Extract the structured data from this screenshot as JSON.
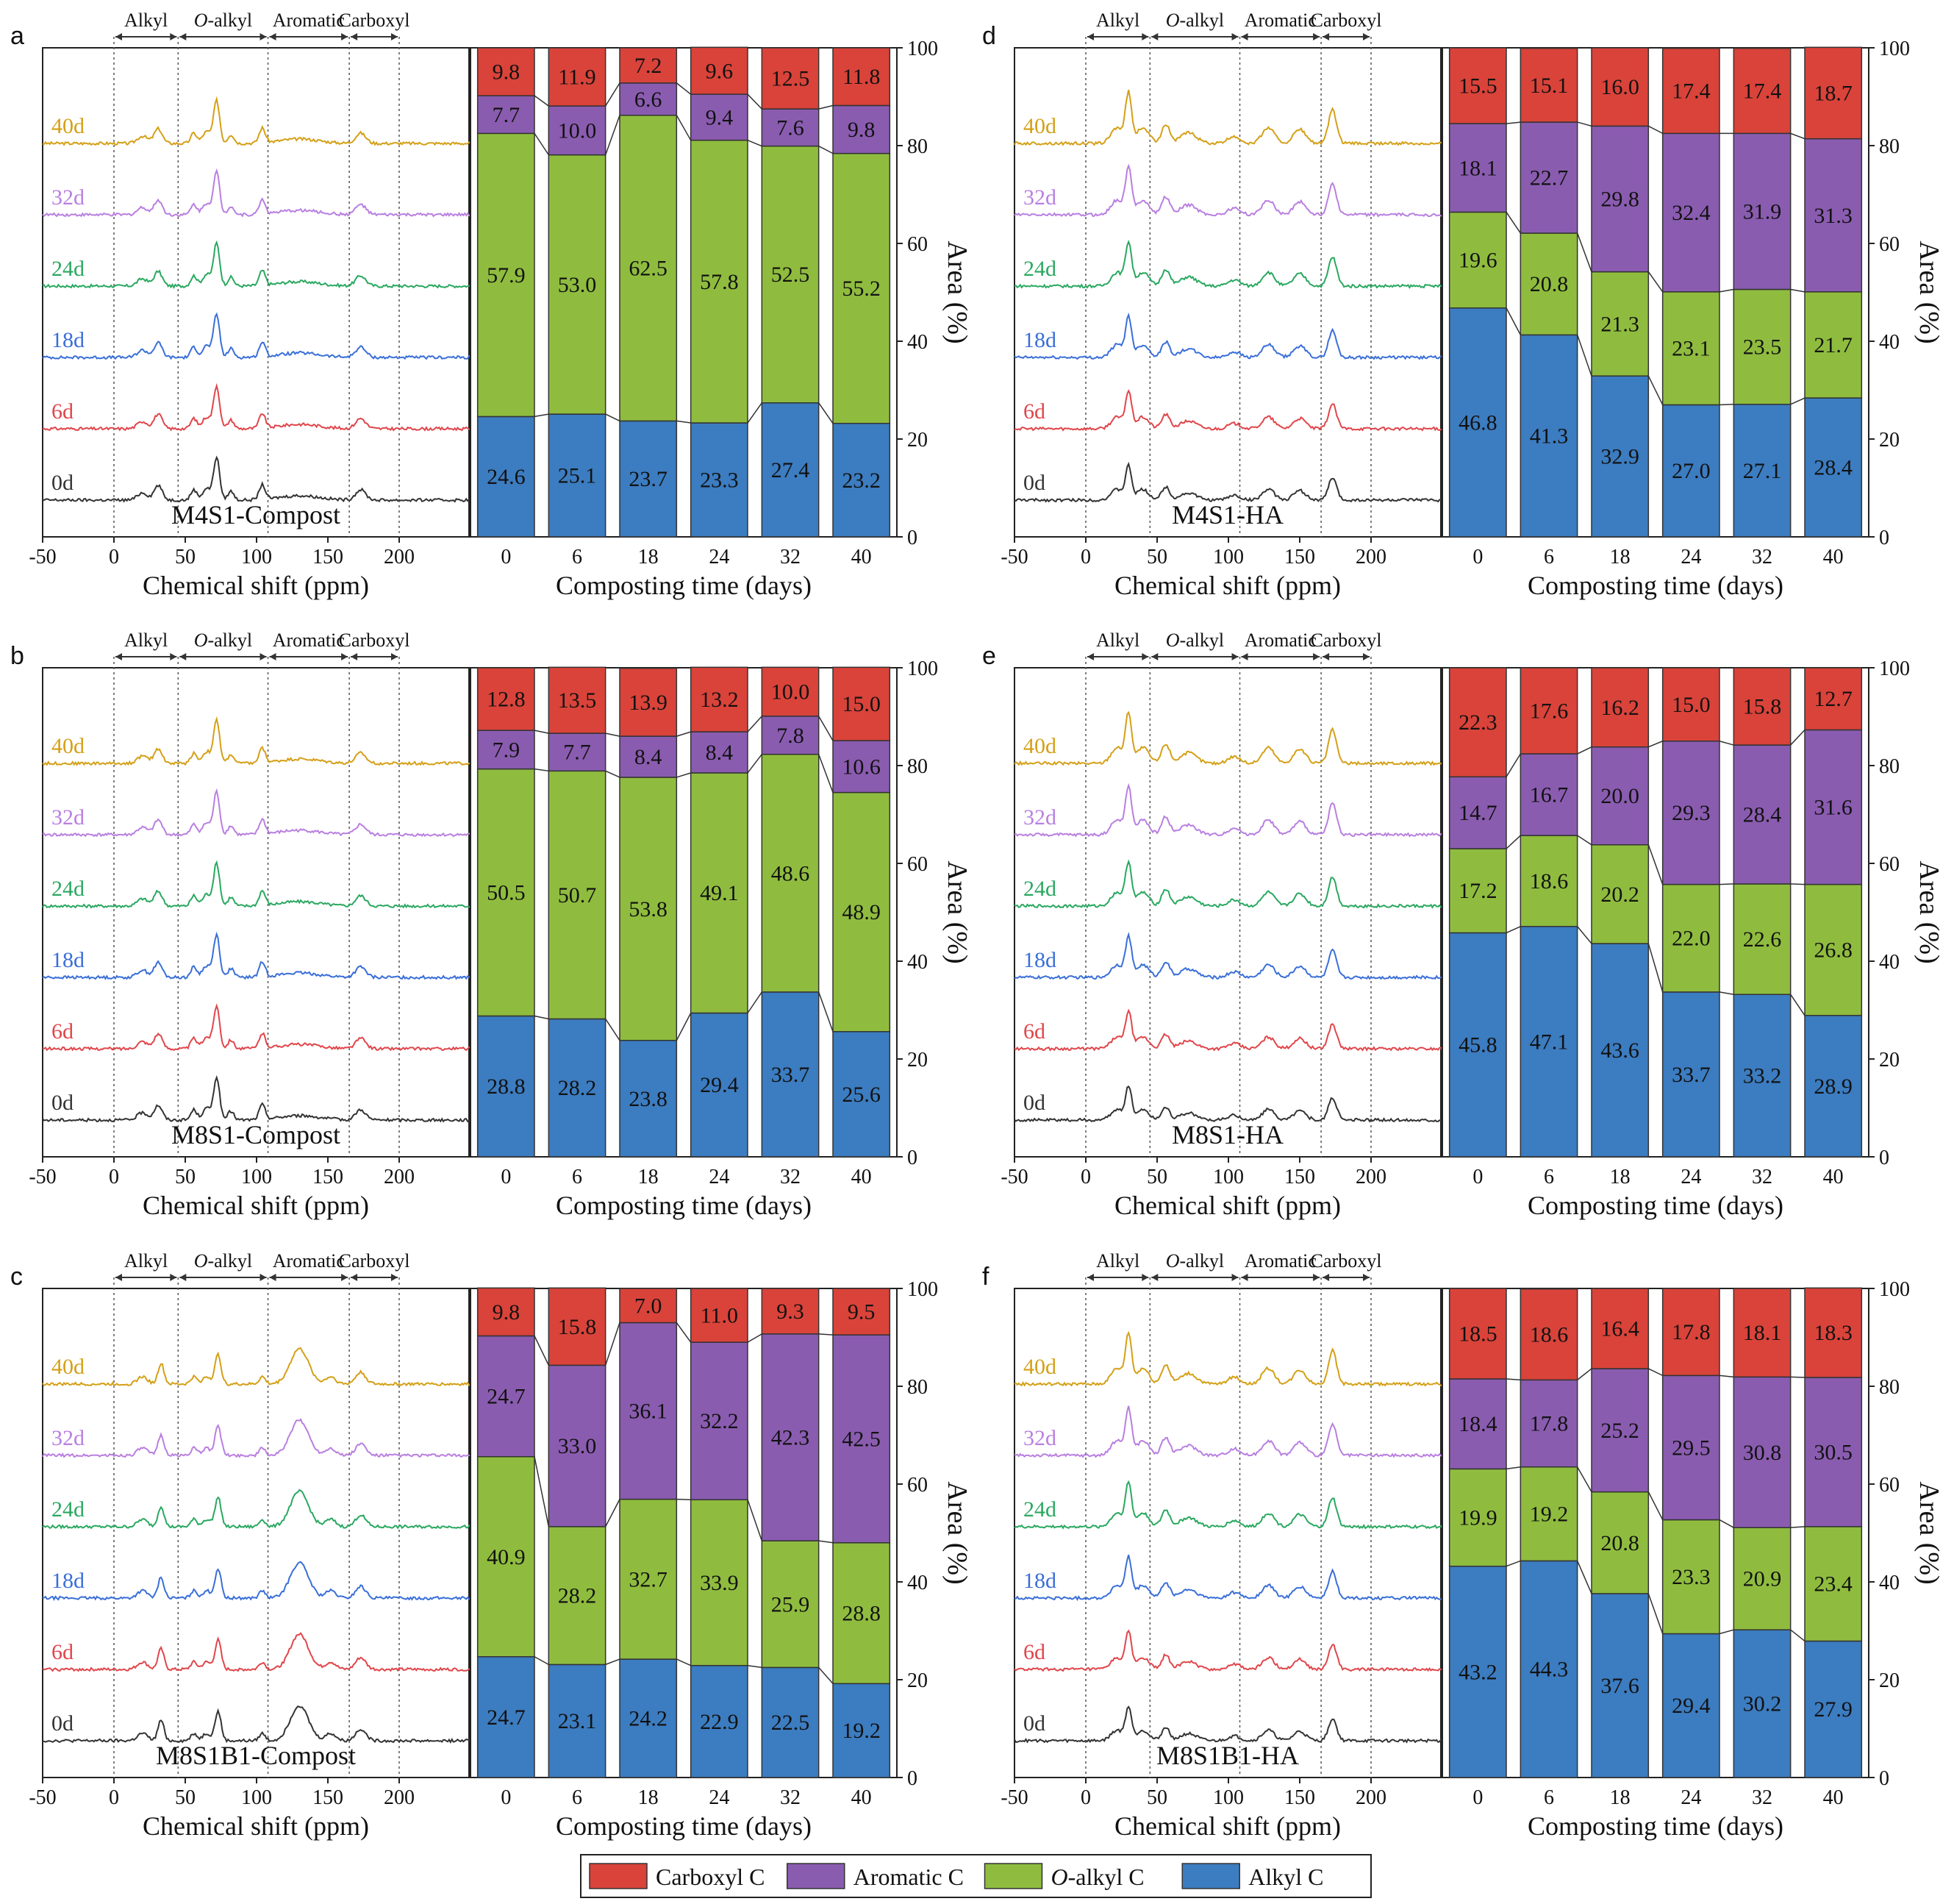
{
  "figure": {
    "region_labels": [
      "Alkyl",
      "O-alkyl",
      "Aromatic",
      "Carboxyl"
    ],
    "spectrum_xlabel": "Chemical shift (ppm)",
    "spectrum_xticks": [
      "-50",
      "0",
      "50",
      "100",
      "150",
      "200"
    ],
    "bar_xlabel": "Composting time (days)",
    "bar_ylabel": "Area (%)",
    "bar_yticks": [
      "0",
      "20",
      "40",
      "60",
      "80",
      "100"
    ],
    "spectra_day_labels": [
      "40d",
      "32d",
      "24d",
      "18d",
      "6d",
      "0d"
    ],
    "spectra_colors": [
      "#d4a017",
      "#b97fe0",
      "#2aa860",
      "#3a6fd8",
      "#e0464b",
      "#333333"
    ],
    "legend": [
      {
        "label": "Carboxyl C",
        "color": "#d9433a"
      },
      {
        "label": "Aromatic C",
        "color": "#8a5cb0"
      },
      {
        "label": "O-alkyl C",
        "color": "#8fbc3f"
      },
      {
        "label": "Alkyl C",
        "color": "#3c7cc0"
      }
    ]
  },
  "chart_data": [
    {
      "panel": "a",
      "type": "bar",
      "stacked": true,
      "title": "M4S1-Compost",
      "categories": [
        "0",
        "6",
        "18",
        "24",
        "32",
        "40"
      ],
      "ylim": [
        0,
        100
      ],
      "series": [
        {
          "name": "Alkyl C",
          "values": [
            24.6,
            25.1,
            23.7,
            23.3,
            27.4,
            23.2
          ]
        },
        {
          "name": "O-alkyl C",
          "values": [
            57.9,
            53.0,
            62.5,
            57.8,
            52.5,
            55.2
          ]
        },
        {
          "name": "Aromatic C",
          "values": [
            7.7,
            10.0,
            6.6,
            9.4,
            7.6,
            9.8
          ]
        },
        {
          "name": "Carboxyl C",
          "values": [
            9.8,
            11.9,
            7.2,
            9.6,
            12.5,
            11.8
          ]
        }
      ]
    },
    {
      "panel": "b",
      "type": "bar",
      "stacked": true,
      "title": "M8S1-Compost",
      "categories": [
        "0",
        "6",
        "18",
        "24",
        "32",
        "40"
      ],
      "ylim": [
        0,
        100
      ],
      "series": [
        {
          "name": "Alkyl C",
          "values": [
            28.8,
            28.2,
            23.8,
            29.4,
            33.7,
            25.6
          ]
        },
        {
          "name": "O-alkyl C",
          "values": [
            50.5,
            50.7,
            53.8,
            49.1,
            48.6,
            48.9
          ]
        },
        {
          "name": "Aromatic C",
          "values": [
            7.9,
            7.7,
            8.4,
            8.4,
            7.8,
            10.6
          ]
        },
        {
          "name": "Carboxyl C",
          "values": [
            12.8,
            13.5,
            13.9,
            13.2,
            10.0,
            15.0
          ]
        }
      ]
    },
    {
      "panel": "c",
      "type": "bar",
      "stacked": true,
      "title": "M8S1B1-Compost",
      "categories": [
        "0",
        "6",
        "18",
        "24",
        "32",
        "40"
      ],
      "ylim": [
        0,
        100
      ],
      "series": [
        {
          "name": "Alkyl C",
          "values": [
            24.7,
            23.1,
            24.2,
            22.9,
            22.5,
            19.2
          ]
        },
        {
          "name": "O-alkyl C",
          "values": [
            40.9,
            28.2,
            32.7,
            33.9,
            25.9,
            28.8
          ]
        },
        {
          "name": "Aromatic C",
          "values": [
            24.7,
            33.0,
            36.1,
            32.2,
            42.3,
            42.5
          ]
        },
        {
          "name": "Carboxyl C",
          "values": [
            9.8,
            15.8,
            7.0,
            11.0,
            9.3,
            9.5
          ]
        }
      ]
    },
    {
      "panel": "d",
      "type": "bar",
      "stacked": true,
      "title": "M4S1-HA",
      "categories": [
        "0",
        "6",
        "18",
        "24",
        "32",
        "40"
      ],
      "ylim": [
        0,
        100
      ],
      "series": [
        {
          "name": "Alkyl C",
          "values": [
            46.8,
            41.3,
            32.9,
            27.0,
            27.1,
            28.4
          ]
        },
        {
          "name": "O-alkyl C",
          "values": [
            19.6,
            20.8,
            21.3,
            23.1,
            23.5,
            21.7
          ]
        },
        {
          "name": "Aromatic C",
          "values": [
            18.1,
            22.7,
            29.8,
            32.4,
            31.9,
            31.3
          ]
        },
        {
          "name": "Carboxyl C",
          "values": [
            15.5,
            15.1,
            16.0,
            17.4,
            17.4,
            18.7
          ]
        }
      ]
    },
    {
      "panel": "e",
      "type": "bar",
      "stacked": true,
      "title": "M8S1-HA",
      "categories": [
        "0",
        "6",
        "18",
        "24",
        "32",
        "40"
      ],
      "ylim": [
        0,
        100
      ],
      "series": [
        {
          "name": "Alkyl C",
          "values": [
            45.8,
            47.1,
            43.6,
            33.7,
            33.2,
            28.9
          ]
        },
        {
          "name": "O-alkyl C",
          "values": [
            17.2,
            18.6,
            20.2,
            22.0,
            22.6,
            26.8
          ]
        },
        {
          "name": "Aromatic C",
          "values": [
            14.7,
            16.7,
            20.0,
            29.3,
            28.4,
            31.6
          ]
        },
        {
          "name": "Carboxyl C",
          "values": [
            22.3,
            17.6,
            16.2,
            15.0,
            15.8,
            12.7
          ]
        }
      ]
    },
    {
      "panel": "f",
      "type": "bar",
      "stacked": true,
      "title": "M8S1B1-HA",
      "categories": [
        "0",
        "6",
        "18",
        "24",
        "32",
        "40"
      ],
      "ylim": [
        0,
        100
      ],
      "series": [
        {
          "name": "Alkyl C",
          "values": [
            43.2,
            44.3,
            37.6,
            29.4,
            30.2,
            27.9
          ]
        },
        {
          "name": "O-alkyl C",
          "values": [
            19.9,
            19.2,
            20.8,
            23.3,
            20.9,
            23.4
          ]
        },
        {
          "name": "Aromatic C",
          "values": [
            18.4,
            17.8,
            25.2,
            29.5,
            30.8,
            30.5
          ]
        },
        {
          "name": "Carboxyl C",
          "values": [
            18.5,
            18.6,
            16.4,
            17.8,
            18.1,
            18.3
          ]
        }
      ]
    }
  ]
}
